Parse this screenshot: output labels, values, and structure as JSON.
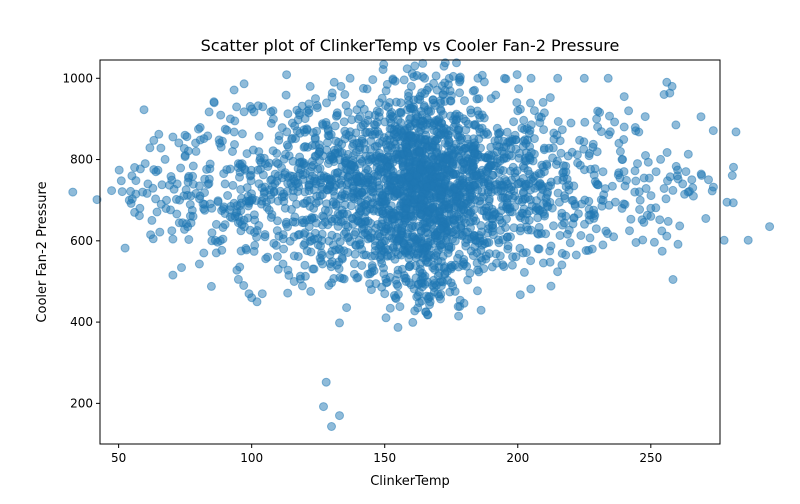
{
  "chart_data": {
    "type": "scatter",
    "title": "Scatter plot of ClinkerTemp vs Cooler Fan-2 Pressure",
    "xlabel": "ClinkerTemp",
    "ylabel": "Cooler Fan-2 Pressure",
    "xlim": [
      43,
      276
    ],
    "ylim": [
      100,
      1045
    ],
    "xticks": [
      50,
      100,
      150,
      200,
      250
    ],
    "yticks": [
      200,
      400,
      600,
      800,
      1000
    ],
    "grid": false,
    "marker_color": "#1f77b4",
    "marker_alpha": 0.5,
    "series": [
      {
        "points": [
          [
            54,
            700
          ],
          [
            55,
            760
          ],
          [
            56,
            670
          ],
          [
            58,
            680
          ],
          [
            59,
            720
          ],
          [
            60,
            790
          ],
          [
            61,
            740
          ],
          [
            62,
            615
          ],
          [
            63,
            605
          ],
          [
            64,
            770
          ],
          [
            66,
            690
          ],
          [
            68,
            700
          ],
          [
            70,
            625
          ],
          [
            72,
            740
          ],
          [
            75,
            810
          ],
          [
            78,
            660
          ],
          [
            80,
            875
          ],
          [
            82,
            570
          ],
          [
            85,
            600
          ],
          [
            88,
            840
          ],
          [
            90,
            640
          ],
          [
            92,
            900
          ],
          [
            95,
            505
          ],
          [
            97,
            490
          ],
          [
            99,
            470
          ],
          [
            100,
            460
          ],
          [
            102,
            450
          ],
          [
            104,
            470
          ],
          [
            106,
            560
          ],
          [
            108,
            920
          ],
          [
            110,
            530
          ],
          [
            112,
            580
          ],
          [
            114,
            515
          ],
          [
            116,
            500
          ],
          [
            118,
            910
          ],
          [
            120,
            540
          ],
          [
            122,
            980
          ],
          [
            124,
            950
          ],
          [
            126,
            550
          ],
          [
            127,
            192
          ],
          [
            128,
            252
          ],
          [
            129,
            490
          ],
          [
            130,
            143
          ],
          [
            131,
            990
          ],
          [
            132,
            540
          ],
          [
            133,
            170
          ],
          [
            133,
            398
          ],
          [
            135,
            960
          ],
          [
            137,
            1000
          ],
          [
            140,
            510
          ],
          [
            142,
            975
          ],
          [
            145,
            480
          ],
          [
            148,
            940
          ],
          [
            150,
            470
          ],
          [
            152,
            510
          ],
          [
            154,
            460
          ],
          [
            155,
            387
          ],
          [
            156,
            940
          ],
          [
            158,
            500
          ],
          [
            160,
            980
          ],
          [
            162,
            462
          ],
          [
            163,
            448
          ],
          [
            165,
            1000
          ],
          [
            168,
            490
          ],
          [
            170,
            470
          ],
          [
            172,
            960
          ],
          [
            175,
            540
          ],
          [
            178,
            1000
          ],
          [
            180,
            945
          ],
          [
            182,
            520
          ],
          [
            185,
            1000
          ],
          [
            188,
            555
          ],
          [
            190,
            950
          ],
          [
            192,
            545
          ],
          [
            195,
            1000
          ],
          [
            198,
            540
          ],
          [
            200,
            920
          ],
          [
            202,
            570
          ],
          [
            205,
            1000
          ],
          [
            208,
            580
          ],
          [
            210,
            915
          ],
          [
            212,
            575
          ],
          [
            215,
            1000
          ],
          [
            218,
            565
          ],
          [
            220,
            890
          ],
          [
            222,
            565
          ],
          [
            225,
            1000
          ],
          [
            228,
            580
          ],
          [
            230,
            880
          ],
          [
            232,
            590
          ],
          [
            234,
            1000
          ],
          [
            236,
            610
          ],
          [
            238,
            840
          ],
          [
            240,
            955
          ],
          [
            242,
            625
          ],
          [
            244,
            720
          ],
          [
            246,
            700
          ],
          [
            248,
            810
          ],
          [
            250,
            660
          ],
          [
            252,
            770
          ],
          [
            255,
            960
          ],
          [
            256,
            990
          ],
          [
            258,
            980
          ],
          [
            260,
            760
          ],
          [
            262,
            740
          ],
          [
            264,
            720
          ],
          [
            266,
            710
          ],
          [
            240,
            880
          ],
          [
            245,
            790
          ],
          [
            250,
            680
          ],
          [
            120,
            620
          ],
          [
            130,
            750
          ],
          [
            140,
            700
          ],
          [
            150,
            800
          ],
          [
            160,
            660
          ],
          [
            170,
            780
          ],
          [
            180,
            720
          ],
          [
            190,
            810
          ],
          [
            200,
            740
          ],
          [
            210,
            770
          ],
          [
            100,
            700
          ],
          [
            110,
            760
          ],
          [
            90,
            740
          ],
          [
            85,
            680
          ],
          [
            95,
            790
          ],
          [
            105,
            610
          ],
          [
            115,
            850
          ],
          [
            125,
            590
          ],
          [
            135,
            870
          ],
          [
            145,
            620
          ]
        ]
      }
    ]
  }
}
